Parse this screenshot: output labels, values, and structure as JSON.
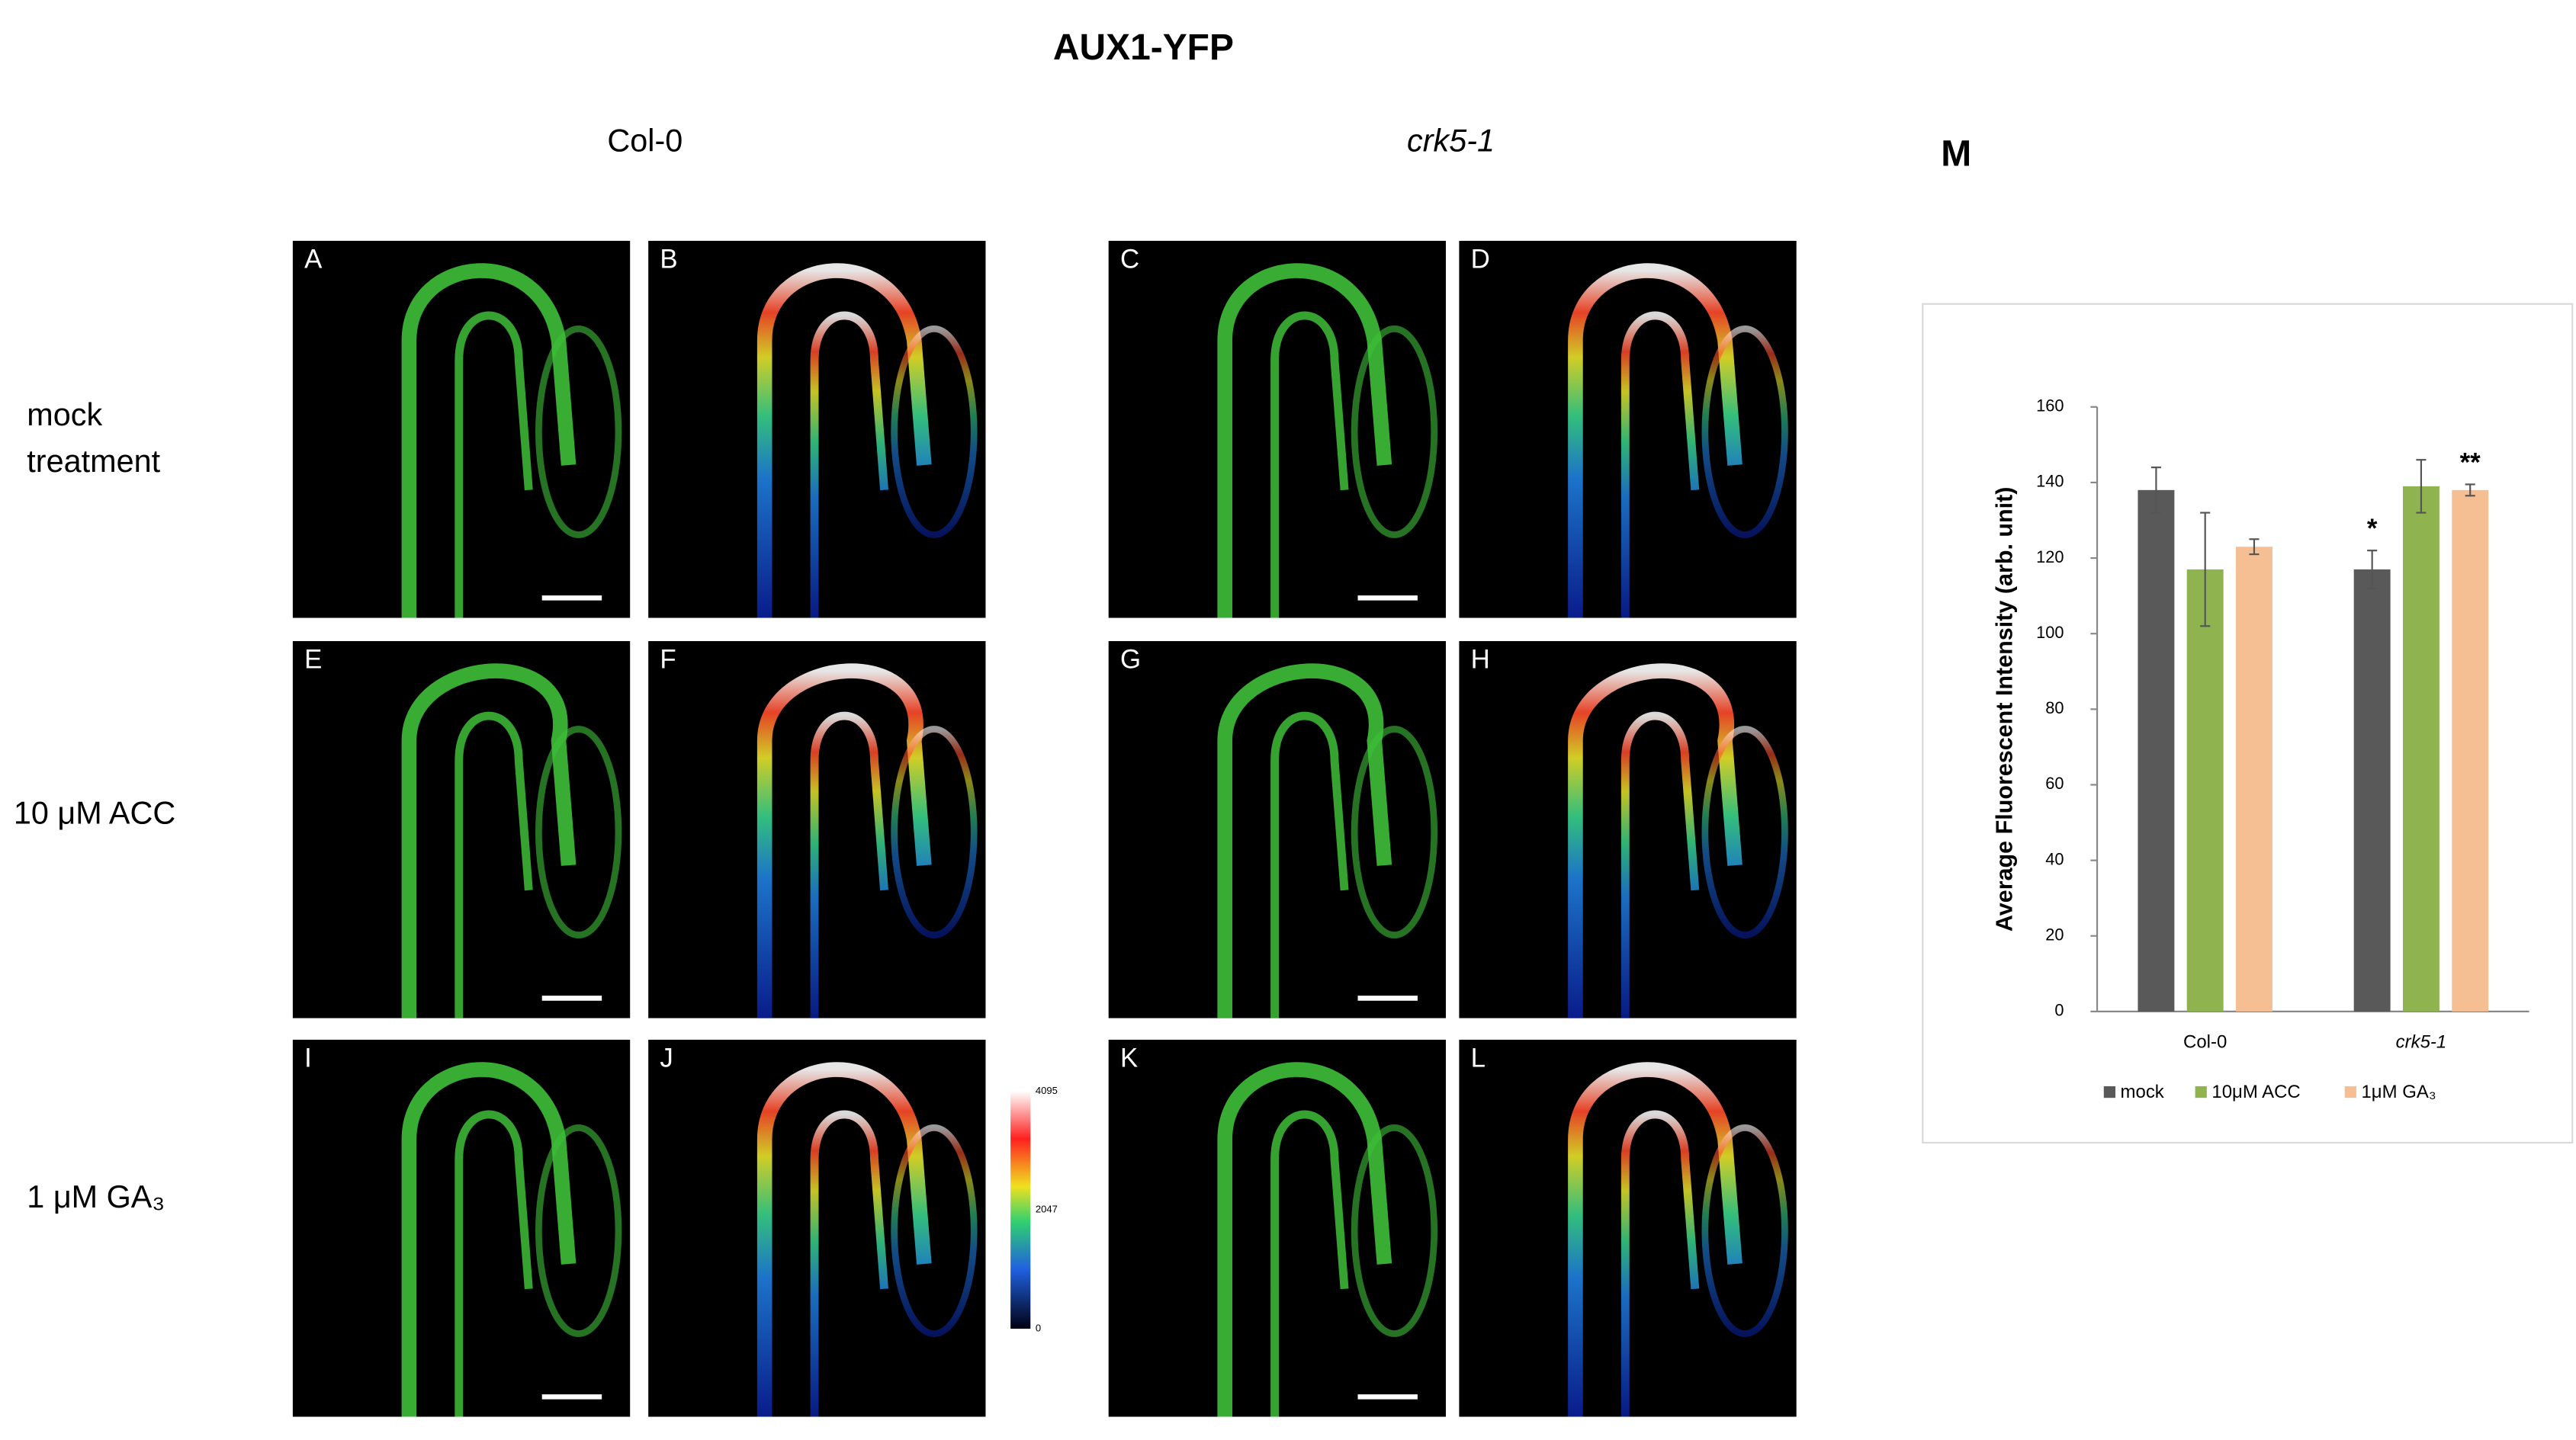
{
  "figure": {
    "title": "AUX1-YFP",
    "columns": [
      "Col-0",
      "crk5-1"
    ],
    "row_labels": [
      [
        "mock",
        "treatment"
      ],
      [
        "10 μM ACC"
      ],
      [
        "1 μM GA₃"
      ]
    ],
    "panel_letters": [
      "A",
      "B",
      "C",
      "D",
      "E",
      "F",
      "G",
      "H",
      "I",
      "J",
      "K",
      "L"
    ],
    "colorbar": {
      "ticks": [
        4095,
        2047,
        0
      ]
    },
    "chart_letter": "M"
  },
  "chart_data": {
    "type": "bar",
    "y_label": "Average Fluorescent Intensity (arb. unit)",
    "categories": [
      "Col-0",
      "crk5-1"
    ],
    "series": [
      {
        "name": "mock",
        "color": "#595959",
        "values": [
          138,
          117
        ],
        "errors": [
          6,
          5
        ],
        "significance": [
          null,
          "*"
        ]
      },
      {
        "name": "10μM ACC",
        "color": "#8fb34f",
        "values": [
          117,
          139
        ],
        "errors": [
          15,
          7
        ],
        "significance": [
          null,
          null
        ]
      },
      {
        "name": "1μM GA₃",
        "color": "#f5bf93",
        "values": [
          123,
          138
        ],
        "errors": [
          2,
          1.5
        ],
        "significance": [
          null,
          "**"
        ]
      }
    ],
    "ylim": [
      0,
      160
    ],
    "yticks": [
      0,
      20,
      40,
      60,
      80,
      100,
      120,
      140,
      160
    ]
  }
}
